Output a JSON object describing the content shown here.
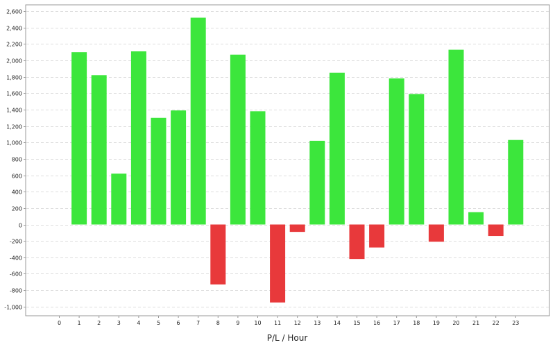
{
  "chart_data": {
    "type": "bar",
    "title": "",
    "xlabel": "P/L / Hour",
    "ylabel": "",
    "categories": [
      "0",
      "1",
      "2",
      "3",
      "4",
      "5",
      "6",
      "7",
      "8",
      "9",
      "10",
      "11",
      "12",
      "13",
      "14",
      "15",
      "16",
      "17",
      "18",
      "19",
      "20",
      "21",
      "22",
      "23"
    ],
    "values": [
      0,
      2100,
      1820,
      620,
      2110,
      1300,
      1390,
      2520,
      -730,
      2070,
      1380,
      -950,
      -90,
      1020,
      1850,
      -420,
      -280,
      1780,
      1590,
      -210,
      2130,
      150,
      -140,
      1030
    ],
    "ylim": [
      -1100,
      2650
    ],
    "yticks": [
      -1000,
      -800,
      -600,
      -400,
      -200,
      0,
      200,
      400,
      600,
      800,
      1000,
      1200,
      1400,
      1600,
      1800,
      2000,
      2200,
      2400,
      2600
    ],
    "ytick_labels": [
      "-1,000",
      "-800",
      "-600",
      "-400",
      "-200",
      "0",
      "200",
      "400",
      "600",
      "800",
      "1,000",
      "1,200",
      "1,400",
      "1,600",
      "1,800",
      "2,000",
      "2,200",
      "2,400",
      "2,600"
    ],
    "grid": true,
    "legend": "none",
    "colors": {
      "positive": "#3ce63c",
      "negative": "#e8393b",
      "grid": "#dddddd",
      "frame": "#999999"
    }
  }
}
